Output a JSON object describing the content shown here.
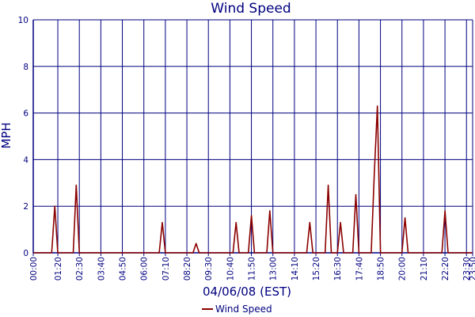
{
  "chart_data": {
    "type": "line",
    "title": "Wind Speed",
    "xlabel": "04/06/08 (EST)",
    "ylabel": "MPH",
    "ylim": [
      0,
      10
    ],
    "yticks": [
      0,
      2,
      4,
      6,
      8,
      10
    ],
    "xlim_minutes": [
      0,
      1430
    ],
    "xticks": [
      "00:00",
      "01:20",
      "02:30",
      "03:40",
      "04:50",
      "06:00",
      "07:10",
      "08:20",
      "09:30",
      "10:40",
      "11:50",
      "13:00",
      "14:10",
      "15:20",
      "16:30",
      "17:40",
      "18:50",
      "20:00",
      "21:10",
      "22:20",
      "23:30",
      "23:50"
    ],
    "grid": true,
    "legend": "bottom-center",
    "series": [
      {
        "name": "Wind Speed",
        "color": "#8b0000",
        "x": [
          "00:00",
          "01:00",
          "01:10",
          "01:20",
          "01:30",
          "02:10",
          "02:20",
          "02:30",
          "02:40",
          "06:50",
          "07:00",
          "07:10",
          "07:20",
          "08:40",
          "08:50",
          "09:00",
          "09:10",
          "10:50",
          "11:00",
          "11:10",
          "11:20",
          "11:40",
          "11:50",
          "12:00",
          "12:10",
          "12:40",
          "12:50",
          "13:00",
          "13:10",
          "14:50",
          "15:00",
          "15:10",
          "15:20",
          "15:50",
          "16:00",
          "16:10",
          "16:20",
          "16:30",
          "16:40",
          "16:50",
          "17:00",
          "17:20",
          "17:30",
          "17:40",
          "17:50",
          "18:00",
          "18:20",
          "18:30",
          "18:40",
          "18:50",
          "19:00",
          "19:10",
          "19:20",
          "19:30",
          "19:40",
          "20:00",
          "20:10",
          "20:20",
          "20:30",
          "22:10",
          "22:20",
          "22:30",
          "22:40",
          "23:50"
        ],
        "y": [
          0,
          0,
          2,
          0,
          0,
          0,
          2.9,
          0,
          0,
          0,
          1.3,
          0,
          0,
          0,
          0.4,
          0,
          0,
          0,
          1.3,
          0,
          0,
          0,
          1.6,
          0,
          0,
          0,
          1.8,
          0,
          0,
          0,
          1.3,
          0,
          0,
          0,
          2.9,
          0,
          0,
          0,
          1.3,
          0,
          0,
          0,
          2.5,
          0,
          0,
          0,
          0,
          3.4,
          6.3,
          0,
          0,
          0,
          0,
          0,
          0,
          0,
          1.5,
          0,
          0,
          0,
          1.8,
          0,
          0,
          0
        ]
      }
    ]
  }
}
